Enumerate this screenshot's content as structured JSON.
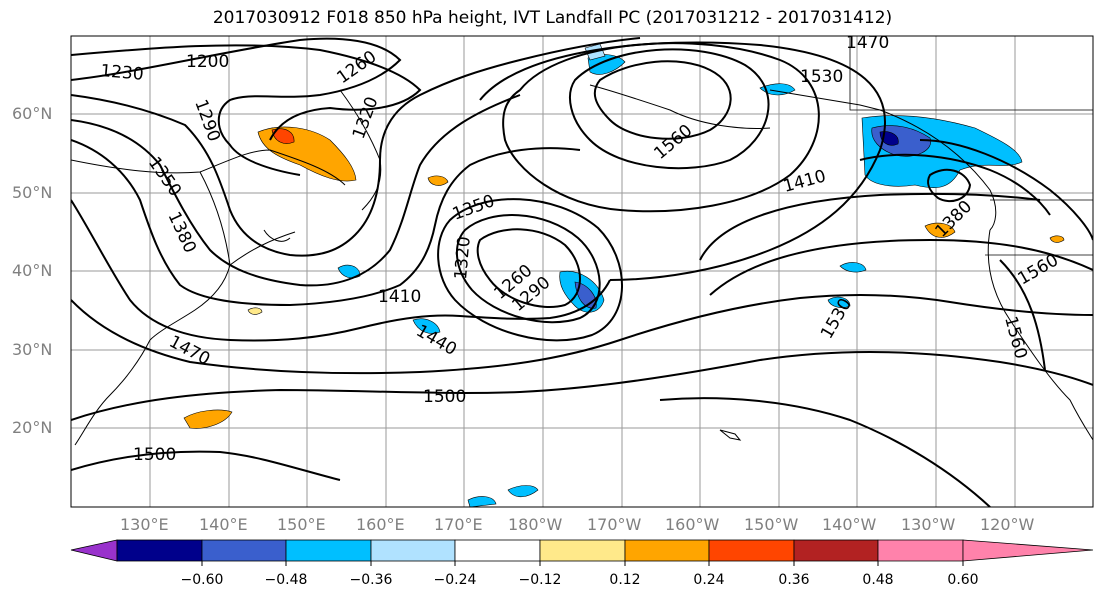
{
  "title": "2017030912 F018 850 hPa height, IVT Landfall PC (2017031212 - 2017031412)",
  "lat_labels": [
    "60°N",
    "50°N",
    "40°N",
    "30°N",
    "20°N"
  ],
  "lon_labels": [
    "130°E",
    "140°E",
    "150°E",
    "160°E",
    "170°E",
    "180°W",
    "170°W",
    "160°W",
    "150°W",
    "140°W",
    "130°W",
    "120°W"
  ],
  "contour_labels": [
    "1230",
    "1200",
    "1290",
    "1350",
    "1380",
    "1320",
    "1260",
    "1560",
    "1530",
    "1470",
    "1410",
    "1350",
    "1320",
    "1260",
    "1290",
    "1410",
    "1440",
    "1470",
    "1500",
    "1500",
    "1530",
    "1560",
    "1560",
    "1380"
  ],
  "colorbar": {
    "colors": [
      "#9932cc",
      "#00008b",
      "#3a5fcd",
      "#00bfff",
      "#b0e2ff",
      "#ffffff",
      "#ffe98a",
      "#ffa500",
      "#ff4500",
      "#b22222",
      "#ff82ab"
    ],
    "ticks": [
      "−0.60",
      "−0.48",
      "−0.36",
      "−0.24",
      "−0.12",
      "0.12",
      "0.24",
      "0.36",
      "0.48",
      "0.60"
    ]
  }
}
